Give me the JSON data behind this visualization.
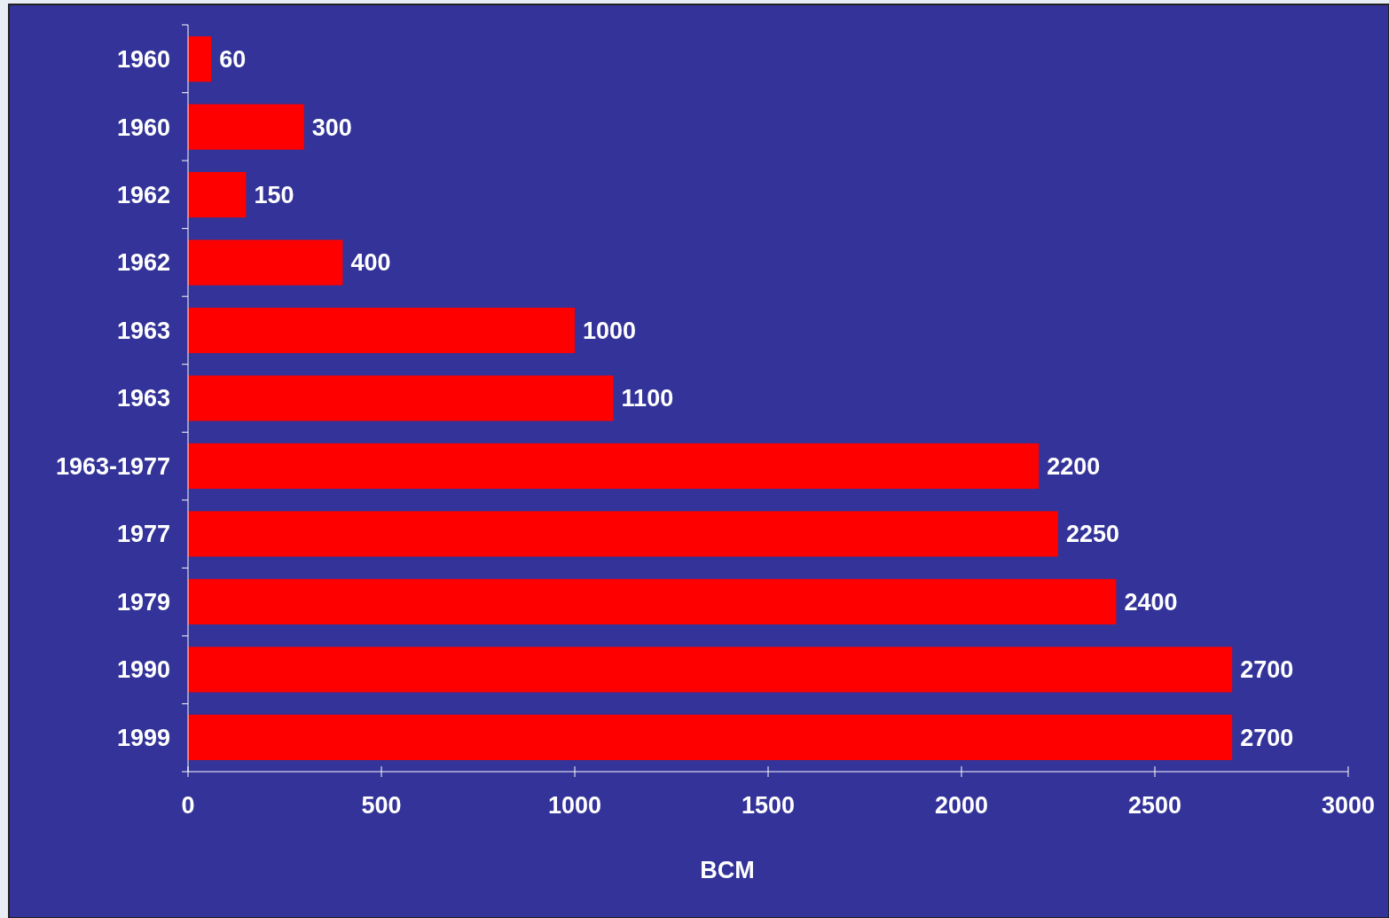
{
  "chart_data": {
    "type": "bar",
    "orientation": "horizontal",
    "xlabel": "BCM",
    "categories": [
      "1960",
      "1960",
      "1962",
      "1962",
      "1963",
      "1963",
      "1963-1977",
      "1977",
      "1979",
      "1990",
      "1999"
    ],
    "values": [
      60,
      300,
      150,
      400,
      1000,
      1100,
      2200,
      2250,
      2400,
      2700,
      2700
    ],
    "color": "#ff0000",
    "xlim": [
      0,
      3000
    ],
    "xticks": [
      0,
      500,
      1000,
      1500,
      2000,
      2500,
      3000
    ],
    "data_labels": true
  }
}
